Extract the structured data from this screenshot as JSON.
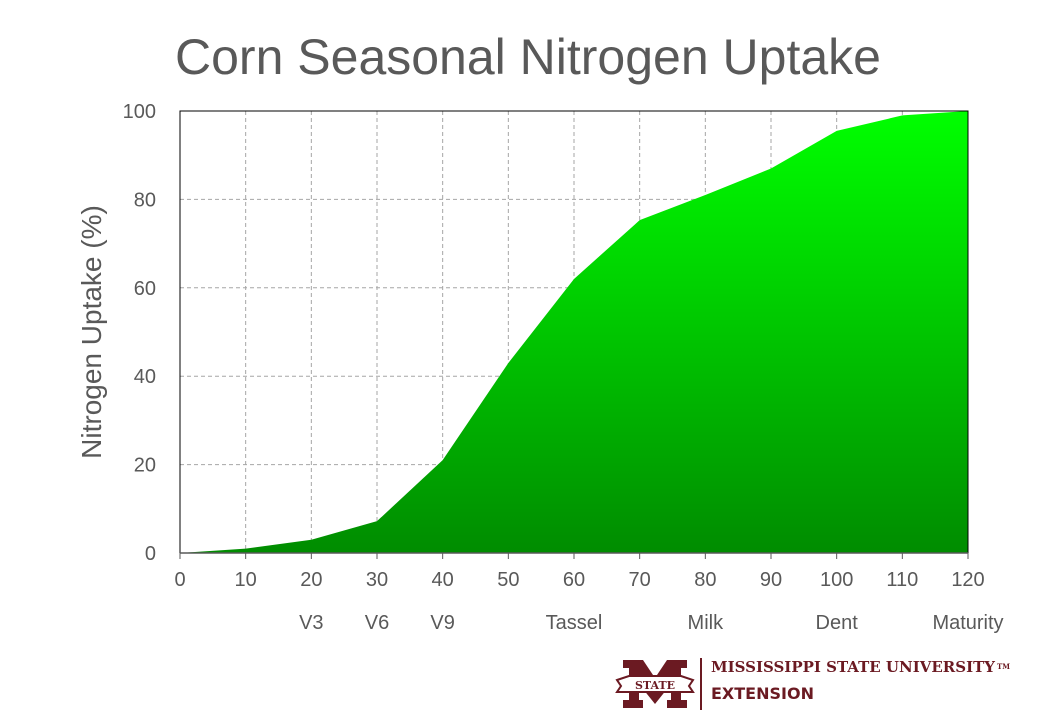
{
  "chart_data": {
    "type": "area",
    "title": "Corn Seasonal Nitrogen Uptake",
    "xlabel": "",
    "ylabel": "Nitrogen Uptake (%)",
    "x": [
      0,
      10,
      20,
      30,
      40,
      50,
      60,
      70,
      80,
      90,
      100,
      110,
      120
    ],
    "values": [
      0,
      1,
      3,
      7.2,
      21,
      43,
      62,
      75.3,
      81,
      87,
      95.5,
      99,
      100
    ],
    "xlim": [
      0,
      120
    ],
    "ylim": [
      0,
      100
    ],
    "xticks": [
      0,
      10,
      20,
      30,
      40,
      50,
      60,
      70,
      80,
      90,
      100,
      110,
      120
    ],
    "yticks": [
      0,
      20,
      40,
      60,
      80,
      100
    ],
    "stage_labels": [
      {
        "x": 20,
        "label": "V3"
      },
      {
        "x": 30,
        "label": "V6"
      },
      {
        "x": 40,
        "label": "V9"
      },
      {
        "x": 60,
        "label": "Tassel"
      },
      {
        "x": 80,
        "label": "Milk"
      },
      {
        "x": 100,
        "label": "Dent"
      },
      {
        "x": 120,
        "label": "Maturity"
      }
    ],
    "grid": true,
    "fill_colors": {
      "top": "#00ff00",
      "bottom": "#008c00"
    }
  },
  "logo": {
    "line1": "MISSISSIPPI STATE UNIVERSITY",
    "tm": "TM",
    "line2": "EXTENSION",
    "emblem": "STATE",
    "color": "#6b1a22"
  }
}
